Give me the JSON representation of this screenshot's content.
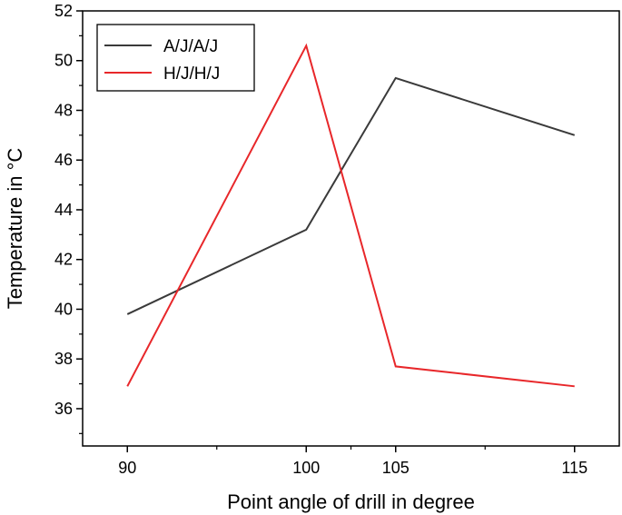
{
  "chart_data": {
    "type": "line",
    "xlabel": "Point angle of drill in degree",
    "ylabel": "Temperature in °C",
    "xlim": [
      87.5,
      117.5
    ],
    "ylim": [
      34.5,
      52
    ],
    "x_ticks": [
      90,
      100,
      105,
      115
    ],
    "x_minor_ticks": [
      95,
      102.5,
      110
    ],
    "y_ticks": [
      36,
      38,
      40,
      42,
      44,
      46,
      48,
      50,
      52
    ],
    "legend_position": "top-left",
    "grid": false,
    "series": [
      {
        "name": "A/J/A/J",
        "color": "#3a3a3a",
        "x": [
          90,
          100,
          105,
          115
        ],
        "y": [
          39.8,
          43.2,
          49.3,
          47.0
        ]
      },
      {
        "name": "H/J/H/J",
        "color": "#e8272a",
        "x": [
          90,
          100,
          105,
          115
        ],
        "y": [
          36.9,
          50.6,
          37.7,
          36.9
        ]
      }
    ]
  }
}
